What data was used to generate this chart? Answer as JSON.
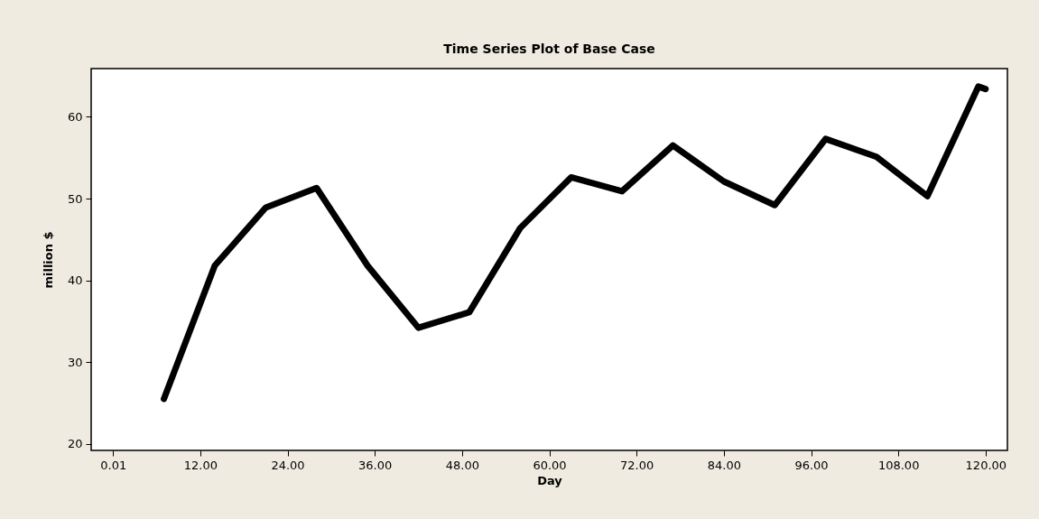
{
  "chart_data": {
    "type": "line",
    "title": "Time Series Plot of Base Case",
    "xlabel": "Day",
    "ylabel": "million $",
    "x": [
      7,
      14,
      21,
      28,
      35,
      42,
      49,
      56,
      63,
      70,
      77,
      84,
      91,
      98,
      105,
      112,
      119,
      120
    ],
    "series": [
      {
        "color": "#000000",
        "values": [
          25.5,
          41.8,
          48.9,
          51.3,
          41.8,
          34.2,
          36.1,
          46.4,
          52.6,
          50.9,
          56.5,
          52.1,
          49.2,
          57.3,
          55.1,
          50.3,
          63.7,
          63.4
        ]
      }
    ],
    "xlim": [
      -3,
      123
    ],
    "ylim": [
      19.2,
      65.9
    ],
    "xticks": [
      0.01,
      {
        "value": 12,
        "label": "12.00"
      },
      {
        "value": 24,
        "label": "24.00"
      },
      {
        "value": 36,
        "label": "36.00"
      },
      {
        "value": 48,
        "label": "48.00"
      },
      {
        "value": 60,
        "label": "60.00"
      },
      {
        "value": 72,
        "label": "72.00"
      },
      {
        "value": 84,
        "label": "84.00"
      },
      {
        "value": 96,
        "label": "96.00"
      },
      {
        "value": 108,
        "label": "108.00"
      },
      {
        "value": 120,
        "label": "120.00"
      }
    ],
    "yticks": [
      20,
      30,
      40,
      50,
      60
    ]
  }
}
